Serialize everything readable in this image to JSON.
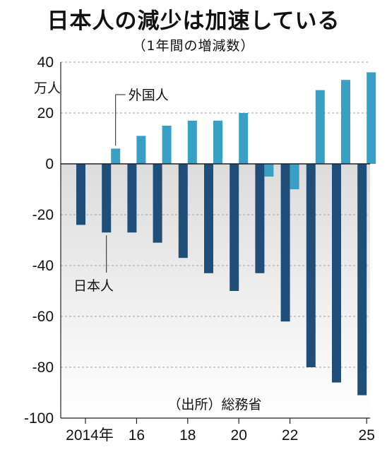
{
  "title": "日本人の減少は加速している",
  "subtitle": "（1年間の増減数）",
  "chart_data": {
    "type": "bar",
    "unit_label": "万人",
    "source_label": "（出所）総務省",
    "x_tick_labels": [
      {
        "year": 2014,
        "label": "2014年"
      },
      {
        "year": 2016,
        "label": "16"
      },
      {
        "year": 2018,
        "label": "18"
      },
      {
        "year": 2020,
        "label": "20"
      },
      {
        "year": 2022,
        "label": "22"
      },
      {
        "year": 2025,
        "label": "25"
      }
    ],
    "years": [
      2014,
      2015,
      2016,
      2017,
      2018,
      2019,
      2020,
      2021,
      2022,
      2023,
      2024,
      2025
    ],
    "ylim": [
      -100,
      40
    ],
    "y_ticks": [
      40,
      20,
      0,
      -20,
      -40,
      -60,
      -80,
      -100
    ],
    "series": [
      {
        "name": "日本人",
        "color": "#1f4e79",
        "values": [
          -24,
          -27,
          -27,
          -31,
          -37,
          -43,
          -50,
          -43,
          -62,
          -80,
          -86,
          -91
        ]
      },
      {
        "name": "外国人",
        "color": "#3a9fc4",
        "values": [
          null,
          6,
          11,
          15,
          17,
          17,
          20,
          -5,
          -10,
          29,
          33,
          36
        ]
      }
    ],
    "negative_region_shading": true
  }
}
